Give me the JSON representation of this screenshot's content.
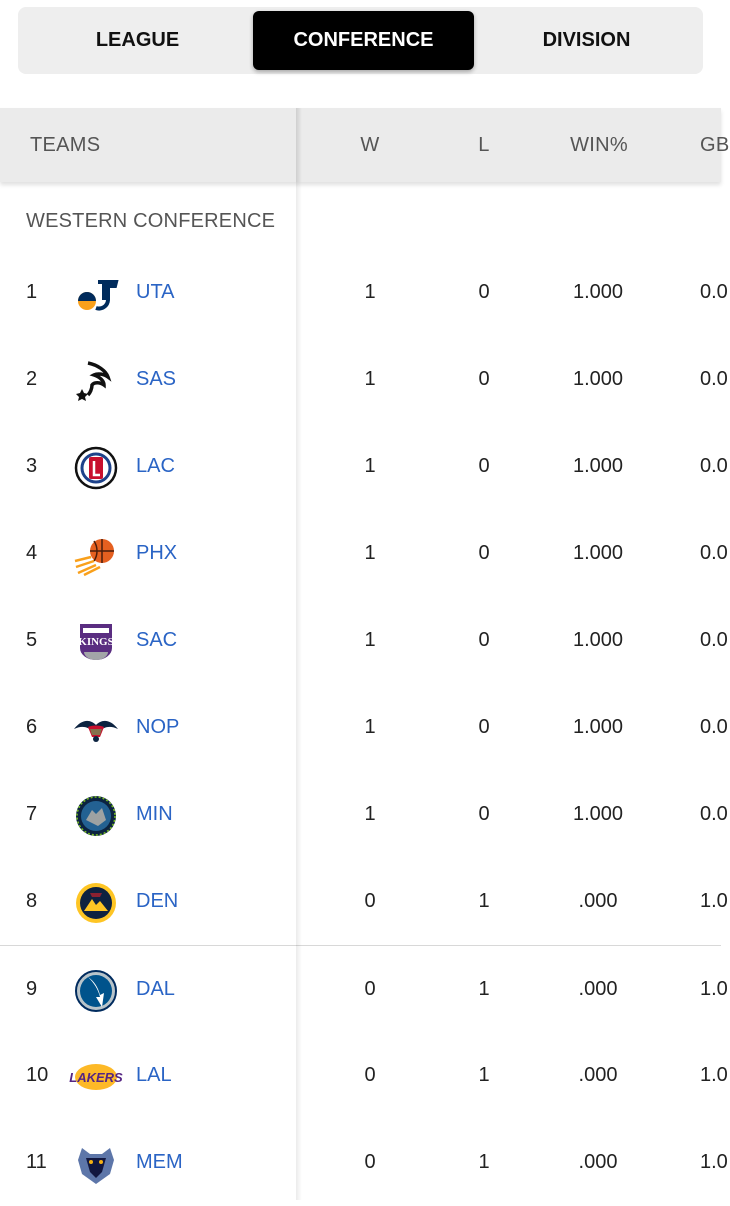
{
  "tabs": [
    {
      "label": "LEAGUE",
      "active": false
    },
    {
      "label": "CONFERENCE",
      "active": true
    },
    {
      "label": "DIVISION",
      "active": false
    }
  ],
  "columns": {
    "teams": "TEAMS",
    "w": "W",
    "l": "L",
    "pct": "WIN%",
    "gb": "GB"
  },
  "conference": "WESTERN CONFERENCE",
  "rows": [
    {
      "rank": "1",
      "abbr": "UTA",
      "w": "1",
      "l": "0",
      "pct": "1.000",
      "gb": "0.0",
      "logo": "utah-jazz-logo"
    },
    {
      "rank": "2",
      "abbr": "SAS",
      "w": "1",
      "l": "0",
      "pct": "1.000",
      "gb": "0.0",
      "logo": "spurs-logo"
    },
    {
      "rank": "3",
      "abbr": "LAC",
      "w": "1",
      "l": "0",
      "pct": "1.000",
      "gb": "0.0",
      "logo": "clippers-logo"
    },
    {
      "rank": "4",
      "abbr": "PHX",
      "w": "1",
      "l": "0",
      "pct": "1.000",
      "gb": "0.0",
      "logo": "suns-logo"
    },
    {
      "rank": "5",
      "abbr": "SAC",
      "w": "1",
      "l": "0",
      "pct": "1.000",
      "gb": "0.0",
      "logo": "kings-logo"
    },
    {
      "rank": "6",
      "abbr": "NOP",
      "w": "1",
      "l": "0",
      "pct": "1.000",
      "gb": "0.0",
      "logo": "pelicans-logo"
    },
    {
      "rank": "7",
      "abbr": "MIN",
      "w": "1",
      "l": "0",
      "pct": "1.000",
      "gb": "0.0",
      "logo": "timberwolves-logo"
    },
    {
      "rank": "8",
      "abbr": "DEN",
      "w": "0",
      "l": "1",
      "pct": ".000",
      "gb": "1.0",
      "logo": "nuggets-logo"
    },
    {
      "rank": "9",
      "abbr": "DAL",
      "w": "0",
      "l": "1",
      "pct": ".000",
      "gb": "1.0",
      "logo": "mavericks-logo"
    },
    {
      "rank": "10",
      "abbr": "LAL",
      "w": "0",
      "l": "1",
      "pct": ".000",
      "gb": "1.0",
      "logo": "lakers-logo"
    },
    {
      "rank": "11",
      "abbr": "MEM",
      "w": "0",
      "l": "1",
      "pct": ".000",
      "gb": "1.0",
      "logo": "grizzlies-logo"
    }
  ],
  "colors": {
    "link": "#2a64c5",
    "tab_active_bg": "#000000",
    "header_bg": "#ebebeb"
  }
}
